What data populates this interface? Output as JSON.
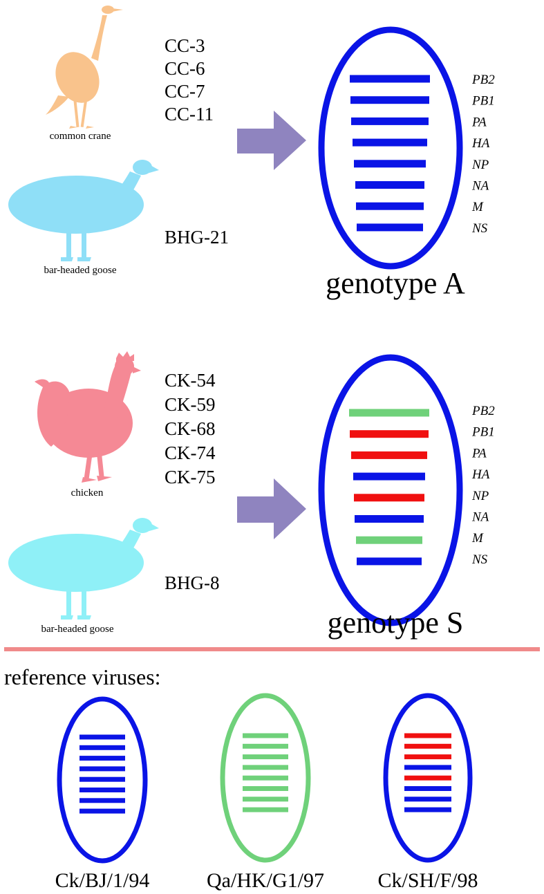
{
  "panel_a": {
    "crane_label": "common crane",
    "goose_label": "bar-headed goose",
    "strains": [
      "CC-3",
      "CC-6",
      "CC-7",
      "CC-11"
    ],
    "goose_strain": "BHG-21",
    "genotype_label": "genotype A",
    "segment_labels": [
      "PB2",
      "PB1",
      "PA",
      "HA",
      "NP",
      "NA",
      "M",
      "NS"
    ],
    "segment_colors": [
      "#0a14e6",
      "#0a14e6",
      "#0a14e6",
      "#0a14e6",
      "#0a14e6",
      "#0a14e6",
      "#0a14e6",
      "#0a14e6"
    ]
  },
  "panel_s": {
    "chicken_label": "chicken",
    "goose_label": "bar-headed goose",
    "strains": [
      "CK-54",
      "CK-59",
      "CK-68",
      "CK-74",
      "CK-75"
    ],
    "goose_strain": "BHG-8",
    "genotype_label": "genotype S",
    "segment_labels": [
      "PB2",
      "PB1",
      "PA",
      "HA",
      "NP",
      "NA",
      "M",
      "NS"
    ],
    "segment_colors": [
      "#6fd17a",
      "#f01010",
      "#f01010",
      "#0a14e6",
      "#f01010",
      "#0a14e6",
      "#6fd17a",
      "#0a14e6"
    ]
  },
  "reference": {
    "title": "reference viruses:",
    "viruses": [
      {
        "name": "Ck/BJ/1/94",
        "outline": "#0a14e6",
        "segment_colors": [
          "#0a14e6",
          "#0a14e6",
          "#0a14e6",
          "#0a14e6",
          "#0a14e6",
          "#0a14e6",
          "#0a14e6",
          "#0a14e6"
        ]
      },
      {
        "name": "Qa/HK/G1/97",
        "outline": "#6fd17a",
        "segment_colors": [
          "#6fd17a",
          "#6fd17a",
          "#6fd17a",
          "#6fd17a",
          "#6fd17a",
          "#6fd17a",
          "#6fd17a",
          "#6fd17a"
        ]
      },
      {
        "name": "Ck/SH/F/98",
        "outline": "#0a14e6",
        "segment_colors": [
          "#f01010",
          "#f01010",
          "#f01010",
          "#0a14e6",
          "#f01010",
          "#0a14e6",
          "#0a14e6",
          "#0a14e6"
        ]
      }
    ]
  },
  "colors": {
    "blue": "#0a14e6",
    "green": "#6fd17a",
    "red": "#f01010",
    "arrow": "#8f84bf",
    "divider": "#f08a8a",
    "crane": "#f9c38c",
    "goose": "#8fdff7",
    "chicken": "#f58995"
  },
  "icons": [
    "crane-silhouette-icon",
    "goose-silhouette-icon",
    "chicken-silhouette-icon",
    "right-arrow-icon"
  ]
}
